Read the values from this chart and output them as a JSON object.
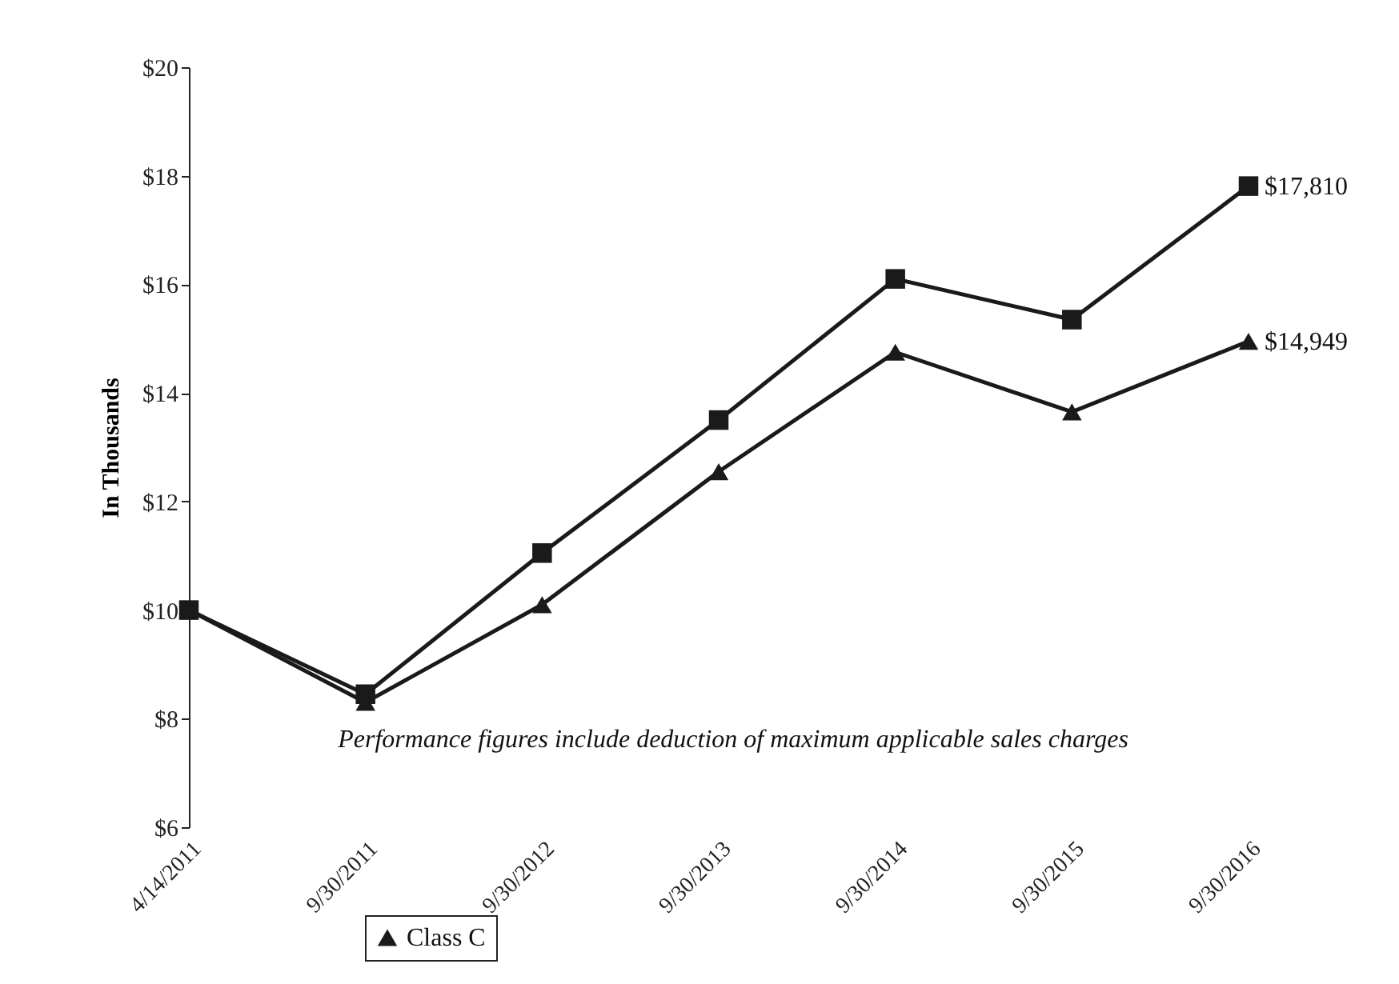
{
  "chart_data": {
    "type": "line",
    "ylabel": "In Thousands",
    "categories": [
      "4/14/2011",
      "9/30/2011",
      "9/30/2012",
      "9/30/2013",
      "9/30/2014",
      "9/30/2015",
      "9/30/2016"
    ],
    "series": [
      {
        "name": "Class C",
        "color": "#1a1a1a",
        "marker": "triangle",
        "values": [
          10,
          8.3,
          10.1,
          12.55,
          14.75,
          13.65,
          14.95
        ]
      },
      {
        "color": "#1a1a1a",
        "marker": "square",
        "values": [
          10,
          8.45,
          11.05,
          13.5,
          16.1,
          15.35,
          17.81
        ]
      }
    ],
    "ylim": [
      6,
      20
    ],
    "yticks": [
      {
        "value": 6,
        "label": "$6"
      },
      {
        "value": 8,
        "label": "$8"
      },
      {
        "value": 10,
        "label": "$10"
      },
      {
        "value": 12,
        "label": "$12"
      },
      {
        "value": 14,
        "label": "$14"
      },
      {
        "value": 16,
        "label": "$16"
      },
      {
        "value": 18,
        "label": "$18"
      },
      {
        "value": 20,
        "label": "$20"
      }
    ],
    "grid": false,
    "legend": "bottom",
    "annotations": [
      "Performance figures include deduction of maximum applicable sales charges",
      {
        "text": "$14,949",
        "x": "9/30/2016",
        "y": 14.95
      },
      {
        "text": "$17,810",
        "x": "9/30/2016",
        "y": 17.81
      }
    ]
  }
}
